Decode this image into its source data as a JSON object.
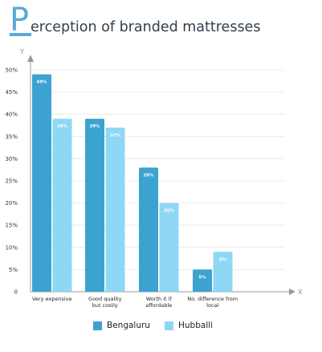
{
  "title": {
    "first_letter": "P",
    "rest": "erception of branded mattresses"
  },
  "colors": {
    "Bengaluru": "#3ca2cf",
    "Hubballi": "#8ed8f5",
    "axis": "#999999",
    "grid": "#e6e6e6",
    "title_accent": "#5aa9dc"
  },
  "chart_data": {
    "type": "bar",
    "title": "Perception of branded mattresses",
    "categories": [
      [
        "Very expensive"
      ],
      [
        "Good quality",
        "but costly"
      ],
      [
        "Worth it if",
        "affordable"
      ],
      [
        "No. difference from",
        "local"
      ]
    ],
    "series": [
      {
        "name": "Bengaluru",
        "values": [
          49,
          39,
          28,
          5
        ],
        "labels": [
          "49%",
          "39%",
          "28%",
          "5%"
        ]
      },
      {
        "name": "Hubballi",
        "values": [
          39,
          37,
          20,
          9
        ],
        "labels": [
          "39%",
          "37%",
          "20%",
          "9%"
        ]
      }
    ],
    "y_ticks": [
      "0",
      "5%",
      "10%",
      "15%",
      "20%",
      "25%",
      "30%",
      "35%",
      "40%",
      "45%",
      "50%"
    ],
    "ylim": [
      0,
      50
    ],
    "xlabel": "X",
    "ylabel": "Y",
    "legend_position": "bottom-center",
    "grid": true
  },
  "legend": [
    {
      "label": "Bengaluru",
      "color": "#3ca2cf"
    },
    {
      "label": "Hubballi",
      "color": "#8ed8f5"
    }
  ]
}
